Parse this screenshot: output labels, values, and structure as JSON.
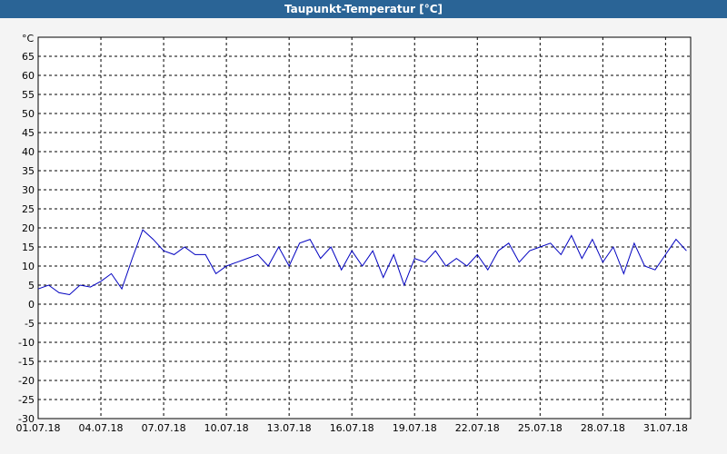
{
  "chart_data": {
    "type": "line",
    "title": "Taupunkt-Temperatur [°C]",
    "y_unit": "°C",
    "x": [
      0,
      0.5,
      1,
      1.5,
      2,
      2.5,
      3,
      3.5,
      4,
      4.5,
      5,
      5.5,
      6,
      6.5,
      7,
      7.5,
      8,
      8.5,
      9,
      9.5,
      10,
      10.5,
      11,
      11.5,
      12,
      12.5,
      13,
      13.5,
      14,
      14.5,
      15,
      15.5,
      16,
      16.5,
      17,
      17.5,
      18,
      18.5,
      19,
      19.5,
      20,
      20.5,
      21,
      21.5,
      22,
      22.5,
      23,
      23.5,
      24,
      24.5,
      25,
      25.5,
      26,
      26.5,
      27,
      27.5,
      28,
      28.5,
      29,
      29.5,
      30,
      30.5,
      31
    ],
    "series": [
      {
        "name": "Taupunkt",
        "color": "#0000c0",
        "values": [
          4,
          5,
          3,
          2.5,
          5,
          4.5,
          6,
          8,
          4,
          12,
          19.5,
          17,
          14,
          13,
          15,
          13,
          13,
          8,
          10,
          11,
          12,
          13,
          10,
          15,
          10,
          16,
          17,
          12,
          15,
          9,
          14,
          10,
          14,
          7,
          13,
          5,
          12,
          11,
          14,
          10,
          12,
          10,
          13,
          9,
          14,
          16,
          11,
          14,
          15,
          16,
          13,
          18,
          12,
          17,
          11,
          15,
          8,
          16,
          10,
          9,
          13,
          17,
          14
        ]
      }
    ],
    "xlim": [
      0,
      31.2
    ],
    "xticks": [
      {
        "value": 0,
        "label": "01.07.18"
      },
      {
        "value": 3,
        "label": "04.07.18"
      },
      {
        "value": 6,
        "label": "07.07.18"
      },
      {
        "value": 9,
        "label": "10.07.18"
      },
      {
        "value": 12,
        "label": "13.07.18"
      },
      {
        "value": 15,
        "label": "16.07.18"
      },
      {
        "value": 18,
        "label": "19.07.18"
      },
      {
        "value": 21,
        "label": "22.07.18"
      },
      {
        "value": 24,
        "label": "25.07.18"
      },
      {
        "value": 27,
        "label": "28.07.18"
      },
      {
        "value": 30,
        "label": "31.07.18"
      }
    ],
    "ylim": [
      -30,
      70
    ],
    "yticks": [
      -30,
      -25,
      -20,
      -15,
      -10,
      -5,
      0,
      5,
      10,
      15,
      20,
      25,
      30,
      35,
      40,
      45,
      50,
      55,
      60,
      65
    ],
    "grid": true
  }
}
